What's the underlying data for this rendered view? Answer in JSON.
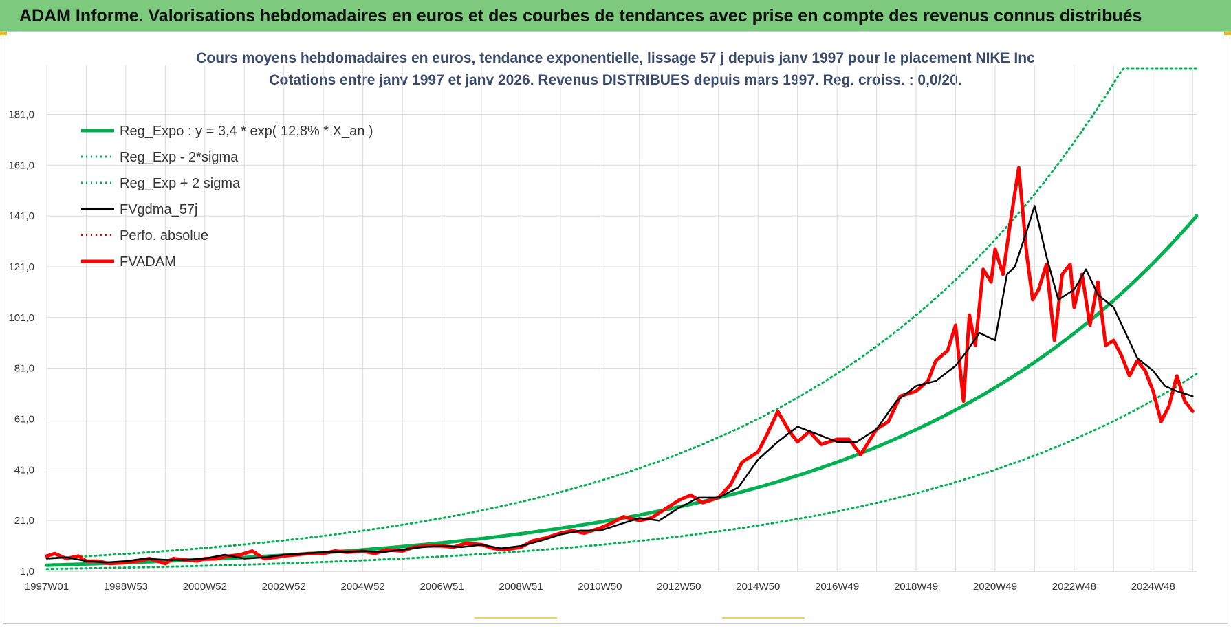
{
  "banner": {
    "title": "ADAM Informe. Valorisations hebdomadaires en euros et des courbes de tendances avec prise en compte des revenus connus distribués",
    "color": "#7dc97d"
  },
  "chart_data": {
    "type": "line",
    "title": "Cours moyens hebdomadaires en euros, tendance exponentielle, lissage 57 j depuis janv 1997 pour le placement NIKE Inc",
    "subtitle": "Cotations entre janv 1997 et janv 2026. Revenus DISTRIBUES depuis mars 1997.  Reg. croiss. : 0,0/20.",
    "xlabel": "",
    "ylabel": "",
    "ylim": [
      1,
      199
    ],
    "yticks": [
      "1,0",
      "21,0",
      "41,0",
      "61,0",
      "81,0",
      "101,0",
      "121,0",
      "141,0",
      "161,0",
      "181,0"
    ],
    "xticks": [
      "1997W01",
      "1998W53",
      "2000W52",
      "2002W52",
      "2004W52",
      "2006W51",
      "2008W51",
      "2010W50",
      "2012W50",
      "2014W50",
      "2016W49",
      "2018W49",
      "2020W49",
      "2022W48",
      "2024W48"
    ],
    "xtick_years": [
      1997.0,
      1999.0,
      2001.0,
      2003.0,
      2005.0,
      2007.0,
      2009.0,
      2011.0,
      2013.0,
      2015.0,
      2017.0,
      2019.0,
      2021.0,
      2023.0,
      2025.0
    ],
    "xlim": [
      1997.0,
      2026.1
    ],
    "grid": true,
    "legend_position": "top-left",
    "series": [
      {
        "name": "Reg_Expo : y = 3,4 * exp( 12,8% *  X_an )",
        "color": "#00b050",
        "style": "solid-thick",
        "formula": {
          "a": 3.4,
          "rate": 0.128
        }
      },
      {
        "name": "Reg_Exp - 2*sigma",
        "color": "#00b050",
        "style": "dotted",
        "formula": {
          "a": 1.9,
          "rate": 0.128
        }
      },
      {
        "name": "Reg_Exp + 2 sigma",
        "color": "#00b050",
        "style": "dotted",
        "formula": {
          "a": 6.1,
          "rate": 0.128,
          "cap": 199
        }
      },
      {
        "name": "FVgdma_57j",
        "color": "#000000",
        "style": "solid",
        "x": [
          1997.0,
          1997.5,
          1998.0,
          1998.5,
          1999.0,
          1999.5,
          2000.0,
          2000.5,
          2001.0,
          2001.5,
          2002.0,
          2002.5,
          2003.0,
          2003.5,
          2004.0,
          2004.5,
          2005.0,
          2005.5,
          2006.0,
          2006.5,
          2007.0,
          2007.5,
          2008.0,
          2008.5,
          2009.0,
          2009.5,
          2010.0,
          2010.5,
          2011.0,
          2011.5,
          2012.0,
          2012.5,
          2013.0,
          2013.5,
          2014.0,
          2014.5,
          2015.0,
          2015.5,
          2016.0,
          2016.5,
          2017.0,
          2017.5,
          2018.0,
          2018.5,
          2019.0,
          2019.5,
          2020.0,
          2020.3,
          2020.6,
          2021.0,
          2021.3,
          2021.5,
          2021.8,
          2022.0,
          2022.3,
          2022.6,
          2023.0,
          2023.3,
          2023.6,
          2024.0,
          2024.3,
          2024.6,
          2025.0,
          2025.3,
          2025.6,
          2026.0
        ],
        "values": [
          6,
          6.5,
          5,
          4.5,
          5,
          6,
          5.5,
          5.5,
          6,
          7.5,
          6,
          6.5,
          7.5,
          8,
          8.5,
          8.5,
          9,
          8.5,
          9.5,
          10.5,
          11,
          10.5,
          11.5,
          10,
          11,
          13,
          15.5,
          17,
          17,
          19.5,
          22,
          21,
          26,
          30,
          30,
          34,
          45,
          52,
          58,
          55,
          52,
          52,
          57,
          68,
          74,
          76,
          82,
          88,
          95,
          92,
          118,
          121,
          135,
          145,
          125,
          108,
          112,
          120,
          110,
          105,
          95,
          85,
          80,
          74,
          72,
          70
        ]
      },
      {
        "name": "Perfo. absolue",
        "color": "#e00000",
        "style": "dotted"
      },
      {
        "name": "FVADAM",
        "color": "#ff0000",
        "style": "solid-thick",
        "x": [
          1997.0,
          1997.2,
          1997.5,
          1997.8,
          1998.0,
          1998.3,
          1998.6,
          1999.0,
          1999.3,
          1999.6,
          2000.0,
          2000.2,
          2000.5,
          2000.8,
          2001.0,
          2001.3,
          2001.6,
          2001.9,
          2002.2,
          2002.5,
          2002.8,
          2003.0,
          2003.3,
          2003.6,
          2004.0,
          2004.3,
          2004.6,
          2005.0,
          2005.3,
          2005.6,
          2006.0,
          2006.3,
          2006.6,
          2007.0,
          2007.3,
          2007.6,
          2008.0,
          2008.3,
          2008.6,
          2009.0,
          2009.3,
          2009.6,
          2010.0,
          2010.3,
          2010.6,
          2011.0,
          2011.3,
          2011.6,
          2012.0,
          2012.3,
          2012.6,
          2013.0,
          2013.3,
          2013.6,
          2014.0,
          2014.3,
          2014.6,
          2015.0,
          2015.2,
          2015.5,
          2015.8,
          2016.0,
          2016.3,
          2016.6,
          2017.0,
          2017.3,
          2017.6,
          2018.0,
          2018.3,
          2018.6,
          2019.0,
          2019.3,
          2019.5,
          2019.8,
          2020.0,
          2020.2,
          2020.35,
          2020.5,
          2020.7,
          2020.9,
          2021.0,
          2021.2,
          2021.4,
          2021.6,
          2021.8,
          2021.95,
          2022.1,
          2022.3,
          2022.5,
          2022.7,
          2022.9,
          2023.0,
          2023.2,
          2023.4,
          2023.6,
          2023.8,
          2024.0,
          2024.2,
          2024.4,
          2024.6,
          2024.8,
          2025.0,
          2025.2,
          2025.4,
          2025.6,
          2025.8,
          2026.0
        ],
        "values": [
          7,
          8,
          6,
          7,
          5,
          5,
          4,
          4.5,
          5,
          6,
          4,
          6,
          5.5,
          5,
          6,
          6,
          7,
          7.5,
          9,
          6,
          6.5,
          7,
          7.5,
          8,
          8,
          9,
          8.5,
          9,
          8,
          9.5,
          9,
          10.5,
          11,
          11,
          10.5,
          12,
          11.5,
          10,
          9.5,
          10.5,
          13,
          14,
          16,
          17,
          16,
          18,
          20,
          22.5,
          21,
          22,
          25,
          29,
          31,
          28,
          30,
          35,
          44,
          48,
          54,
          64,
          56,
          52,
          56,
          51,
          53,
          53,
          47,
          57,
          60,
          70,
          72,
          76,
          84,
          88,
          98,
          68,
          102,
          90,
          120,
          115,
          128,
          118,
          140,
          160,
          126,
          108,
          112,
          122,
          92,
          118,
          122,
          105,
          118,
          98,
          115,
          90,
          92,
          86,
          78,
          84,
          80,
          72,
          60,
          66,
          78,
          68,
          64
        ]
      }
    ]
  }
}
